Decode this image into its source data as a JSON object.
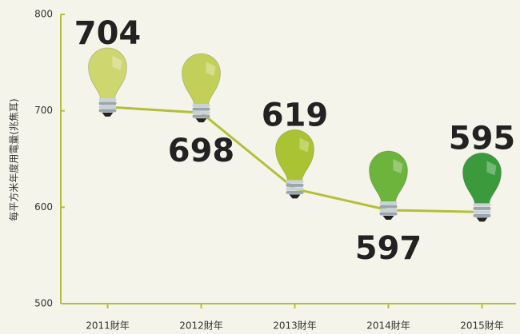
{
  "chart_data": {
    "type": "line",
    "ylabel": "每平方米年度用電量(兆焦耳)",
    "categories": [
      "2011財年",
      "2012財年",
      "2013財年",
      "2014財年",
      "2015財年"
    ],
    "values": [
      704,
      698,
      619,
      597,
      595
    ],
    "line_color": "#b3bf3a",
    "marker_colors": [
      "#cdd66f",
      "#c2d05a",
      "#aac332",
      "#6cb43c",
      "#3a9a3c"
    ],
    "ylim": [
      500,
      800
    ],
    "yticks": [
      500,
      600,
      700,
      800
    ]
  }
}
